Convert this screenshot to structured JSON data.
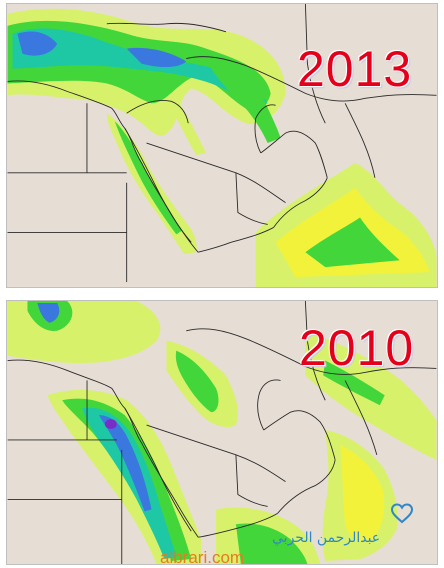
{
  "panels": [
    {
      "year": "2013"
    },
    {
      "year": "2010"
    }
  ],
  "watermark": {
    "arabic_text": "عبدالرحمن الحربي",
    "url": "albrari.com",
    "logo_icon": "heart-icon"
  },
  "colors": {
    "land": "#e6ddd4",
    "light_green": "#d7f26a",
    "yellow": "#f2f23a",
    "green": "#43d63a",
    "bright_green": "#21c34b",
    "teal": "#1ec8a4",
    "blue": "#3a78e0",
    "purple": "#7a2ec8",
    "year_red": "#e4001b",
    "watermark_blue": "#2f86c9",
    "watermark_orange": "#e87a1f"
  }
}
